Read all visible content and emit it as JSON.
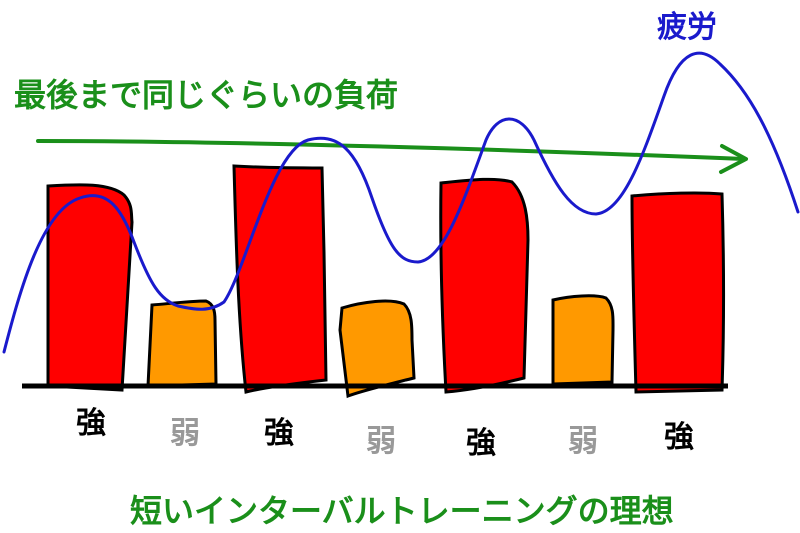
{
  "diagram": {
    "top_caption": "最後まで同じぐらいの負荷",
    "fatigue_label": "疲労",
    "title": "短いインターバルトレーニングの理想",
    "strong_label": "強",
    "weak_label": "弱",
    "bars": [
      {
        "intensity": "strong"
      },
      {
        "intensity": "weak"
      },
      {
        "intensity": "strong"
      },
      {
        "intensity": "weak"
      },
      {
        "intensity": "strong"
      },
      {
        "intensity": "weak"
      },
      {
        "intensity": "strong"
      }
    ],
    "colors": {
      "strong_fill": "#ff0000",
      "weak_fill": "#ff9900",
      "fatigue_line": "#1a1acc",
      "load_arrow": "#1a8f1a",
      "baseline": "#000000",
      "weak_label": "#999999",
      "strong_label": "#000000"
    }
  }
}
